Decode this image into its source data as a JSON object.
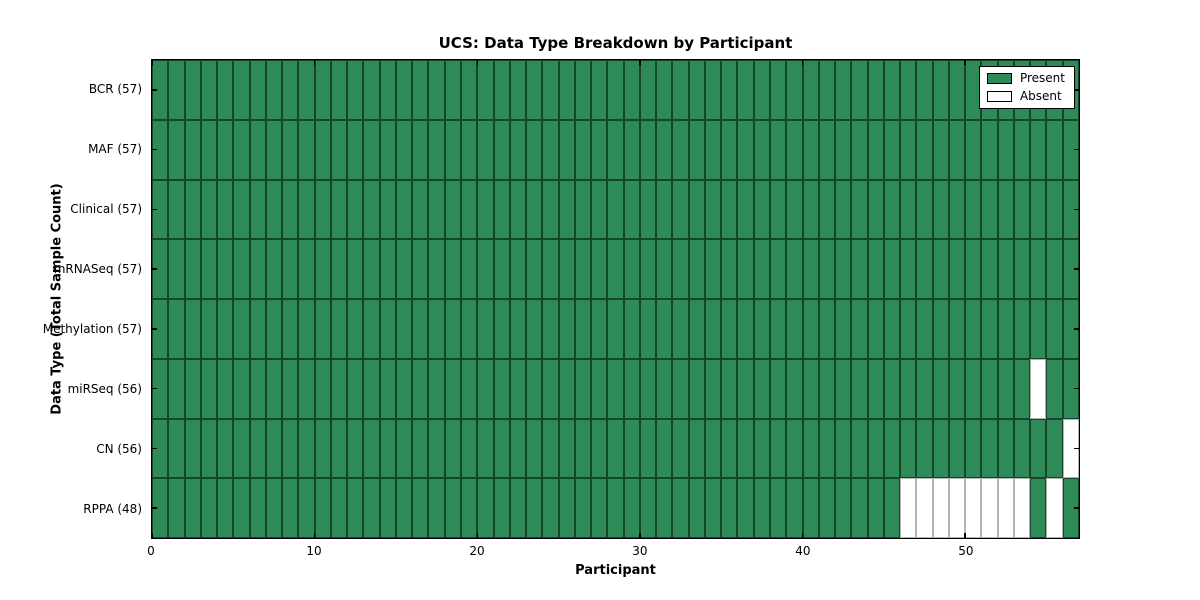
{
  "title": "UCS: Data Type Breakdown by Participant",
  "chart_data": {
    "type": "heatmap",
    "title": "UCS: Data Type Breakdown by Participant",
    "xlabel": "Participant",
    "ylabel": "Data Type (Total Sample Count)",
    "n_participants": 57,
    "x_ticks": [
      0,
      10,
      20,
      30,
      40,
      50
    ],
    "x_tick_labels": [
      "0",
      "10",
      "20",
      "30",
      "40",
      "50"
    ],
    "grid": "cell-borders-on",
    "legend_position": "upper-right",
    "colors": {
      "present": "#2E8B57",
      "absent": "#FFFFFF",
      "cell_border_present": "rgba(0,0,0,0.5)",
      "cell_border_absent": "#b3b3b3",
      "axis": "#000000"
    },
    "rows": [
      {
        "data_type": "BCR",
        "label": "BCR (57)",
        "count": 57,
        "absent_participants": []
      },
      {
        "data_type": "MAF",
        "label": "MAF (57)",
        "count": 57,
        "absent_participants": []
      },
      {
        "data_type": "Clinical",
        "label": "Clinical (57)",
        "count": 57,
        "absent_participants": []
      },
      {
        "data_type": "mRNASeq",
        "label": "mRNASeq (57)",
        "count": 57,
        "absent_participants": []
      },
      {
        "data_type": "Methylation",
        "label": "Methylation (57)",
        "count": 57,
        "absent_participants": []
      },
      {
        "data_type": "miRSeq",
        "label": "miRSeq (56)",
        "count": 56,
        "absent_participants": [
          54
        ]
      },
      {
        "data_type": "CN",
        "label": "CN (56)",
        "count": 56,
        "absent_participants": [
          56
        ]
      },
      {
        "data_type": "RPPA",
        "label": "RPPA (48)",
        "count": 48,
        "absent_participants": [
          46,
          47,
          48,
          49,
          50,
          51,
          52,
          53,
          55
        ]
      }
    ],
    "legend": [
      {
        "label": "Present",
        "color": "#2E8B57"
      },
      {
        "label": "Absent",
        "color": "#FFFFFF"
      }
    ]
  }
}
